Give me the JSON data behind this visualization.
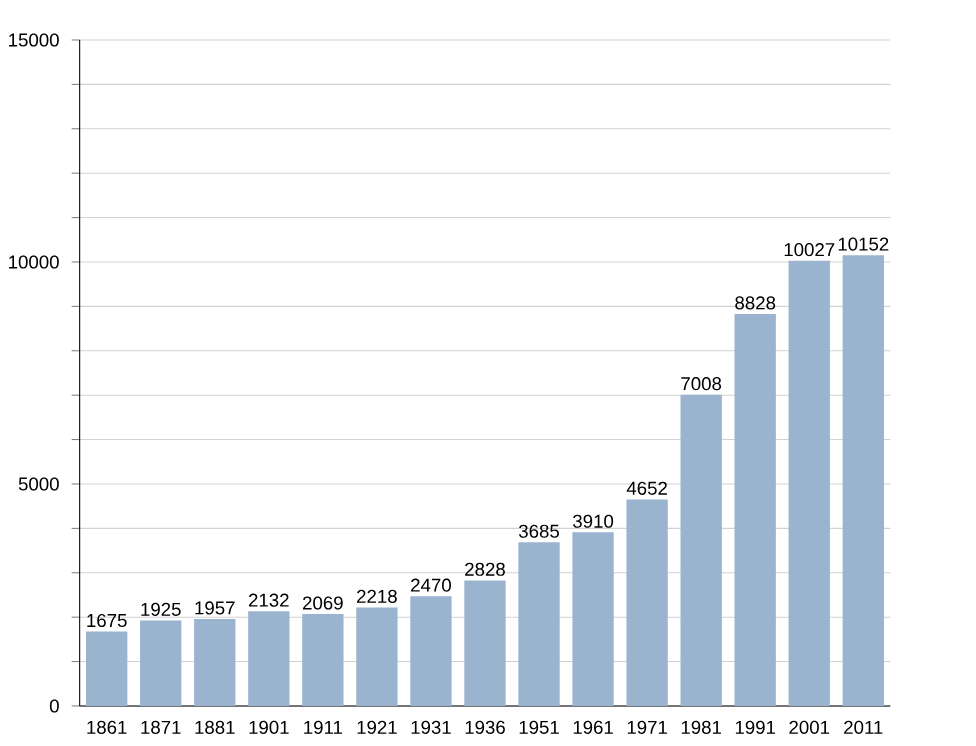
{
  "chart_data": {
    "type": "bar",
    "categories": [
      "1861",
      "1871",
      "1881",
      "1901",
      "1911",
      "1921",
      "1931",
      "1936",
      "1951",
      "1961",
      "1971",
      "1981",
      "1991",
      "2001",
      "2011"
    ],
    "values": [
      1675,
      1925,
      1957,
      2132,
      2069,
      2218,
      2470,
      2828,
      3685,
      3910,
      4652,
      7008,
      8828,
      10027,
      10152
    ],
    "color": "#9ab3cf",
    "data_labels": true,
    "grid": "y",
    "ylim": [
      0,
      15000
    ],
    "yticks": [
      0,
      {
        "value": 1000,
        "label": null
      },
      {
        "value": 2000,
        "label": null
      },
      {
        "value": 3000,
        "label": null
      },
      {
        "value": 4000,
        "label": null
      },
      5000,
      {
        "value": 6000,
        "label": null
      },
      {
        "value": 7000,
        "label": null
      },
      {
        "value": 8000,
        "label": null
      },
      {
        "value": 9000,
        "label": null
      },
      10000,
      {
        "value": 11000,
        "label": null
      },
      {
        "value": 12000,
        "label": null
      },
      {
        "value": 13000,
        "label": null
      },
      {
        "value": 14000,
        "label": null
      },
      15000
    ]
  }
}
